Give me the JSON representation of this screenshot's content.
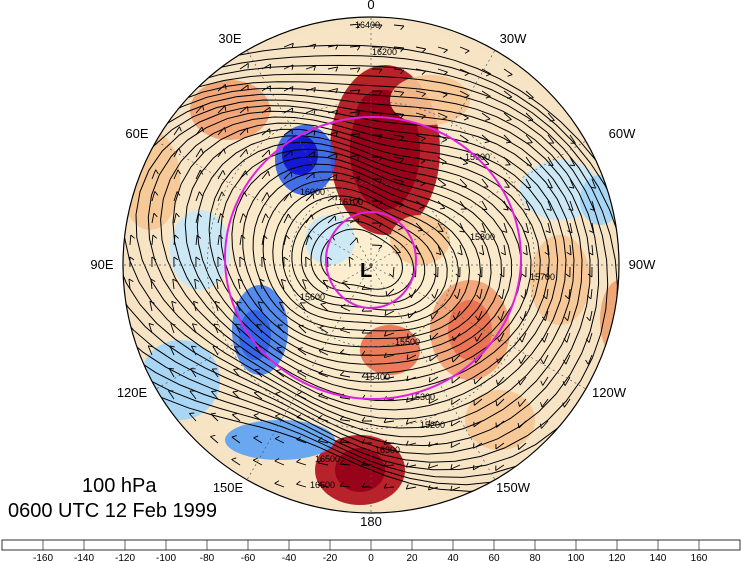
{
  "map": {
    "level": "100 hPa",
    "valid_time": "0600 UTC 12 Feb 1999",
    "low_marker": "L",
    "longitude_labels": [
      "0",
      "30W",
      "60W",
      "90W",
      "120W",
      "150W",
      "180",
      "150E",
      "120E",
      "90E",
      "60E",
      "30E"
    ],
    "contour_labels": [
      "16400",
      "16200",
      "16100",
      "16000",
      "15900",
      "15800",
      "15700",
      "15600",
      "15500",
      "15400",
      "15300",
      "15200",
      "16300",
      "16500",
      "16600"
    ],
    "colors": {
      "circle": "#e020e0",
      "contour": "#000000",
      "positive_max": "#a50021",
      "negative_max": "#1a1ae6"
    }
  },
  "colorbar": {
    "ticks": [
      "-160",
      "-140",
      "-120",
      "-100",
      "-80",
      "-60",
      "-40",
      "-20",
      "0",
      "20",
      "40",
      "60",
      "80",
      "100",
      "120",
      "140",
      "160"
    ],
    "colors": [
      "#1010d0",
      "#1f3fe0",
      "#3060e8",
      "#4080f0",
      "#5aa0f5",
      "#7bbaf5",
      "#a0d4f8",
      "#c8e8fa",
      "#e6f5fb",
      "#fdf6d9",
      "#fbe2b4",
      "#f6c592",
      "#f0a070",
      "#e87050",
      "#e04030",
      "#cc1f20",
      "#b00c18",
      "#960018"
    ]
  }
}
